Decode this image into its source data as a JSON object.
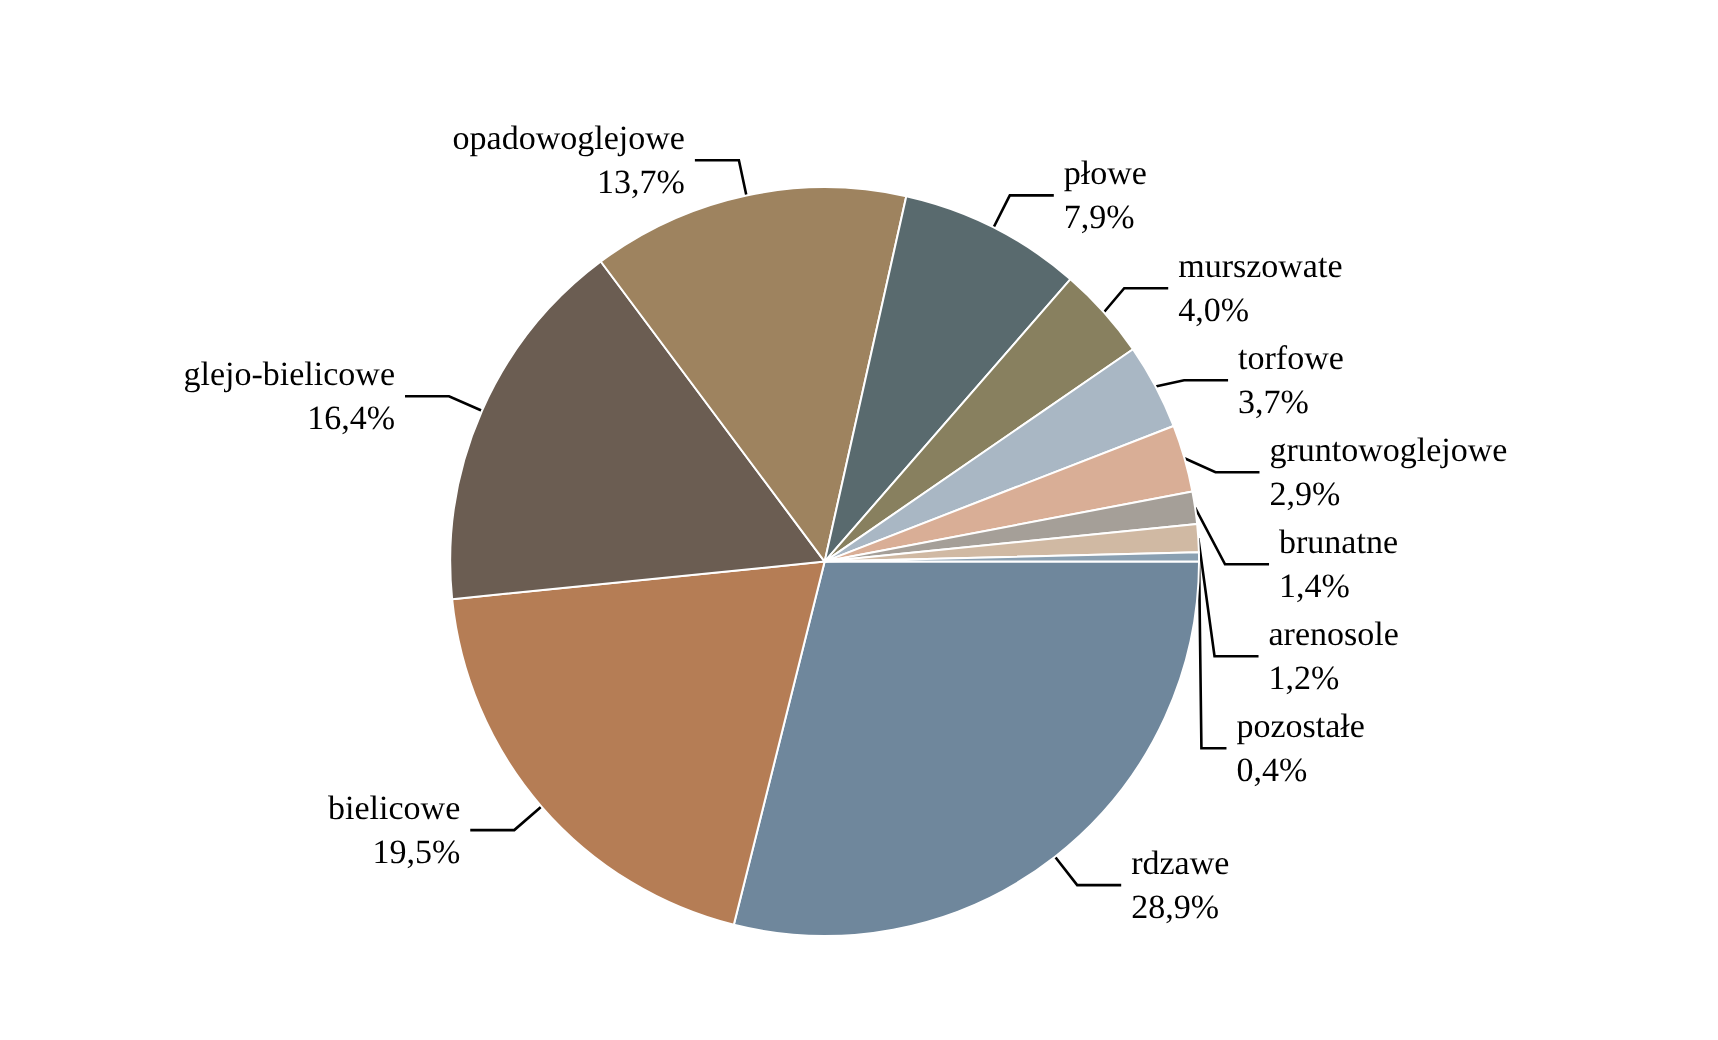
{
  "chart_data": {
    "type": "pie",
    "categories": [
      "rdzawe",
      "bielicowe",
      "glejo-bielicowe",
      "opadowoglejowe",
      "płowe",
      "murszowate",
      "torfowe",
      "gruntowoglejowe",
      "brunatne",
      "arenosole",
      "pozostałe"
    ],
    "values": [
      28.9,
      19.5,
      16.4,
      13.7,
      7.9,
      4.0,
      3.7,
      2.9,
      1.4,
      1.2,
      0.4
    ],
    "colors": [
      "#6f879c",
      "#b57d55",
      "#6b5d52",
      "#9e835f",
      "#596a6e",
      "#88805f",
      "#a9b7c4",
      "#d9ae96",
      "#a59f98",
      "#d0b9a3",
      "#8aa0b2"
    ],
    "value_labels": [
      "28,9%",
      "19,5%",
      "16,4%",
      "13,7%",
      "7,9%",
      "4,0%",
      "3,7%",
      "2,9%",
      "1,4%",
      "1,2%",
      "0,4%"
    ],
    "legend": false
  }
}
